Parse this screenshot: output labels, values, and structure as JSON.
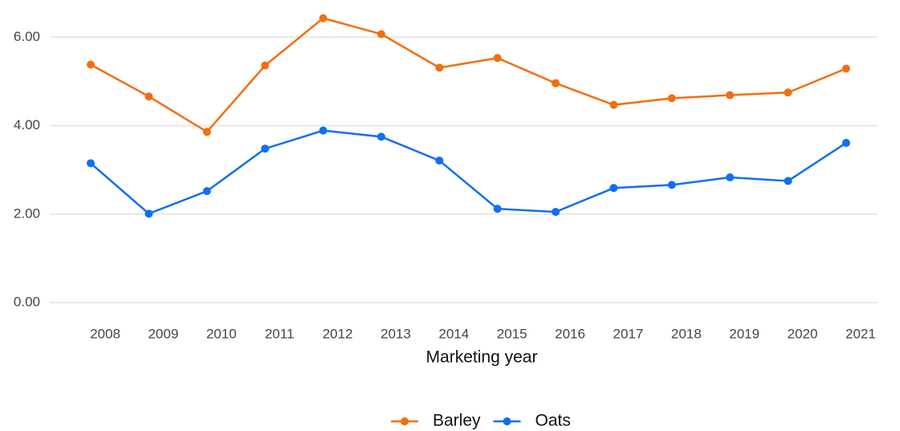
{
  "chart_data": {
    "type": "line",
    "x_label": "Marketing year",
    "categories": [
      "2008",
      "2009",
      "2010",
      "2011",
      "2012",
      "2013",
      "2014",
      "2015",
      "2016",
      "2017",
      "2018",
      "2019",
      "2020",
      "2021"
    ],
    "series": [
      {
        "name": "Barley",
        "color": "#f46d10",
        "values": [
          5.38,
          4.66,
          3.86,
          5.36,
          6.43,
          6.07,
          5.31,
          5.53,
          4.96,
          4.47,
          4.62,
          4.69,
          4.75,
          5.29
        ]
      },
      {
        "name": "Oats",
        "color": "#0f6ff2",
        "values": [
          3.15,
          2.01,
          2.52,
          3.48,
          3.89,
          3.75,
          3.21,
          2.12,
          2.05,
          2.59,
          2.66,
          2.83,
          2.75,
          3.61
        ]
      }
    ],
    "ylim": [
      -0.3,
      6.6
    ],
    "yticks": [
      {
        "value": 0,
        "label": "0.00"
      },
      {
        "value": 2,
        "label": "2.00"
      },
      {
        "value": 4,
        "label": "4.00"
      },
      {
        "value": 6,
        "label": "6.00"
      }
    ],
    "grid": true,
    "legend": "bottom"
  }
}
